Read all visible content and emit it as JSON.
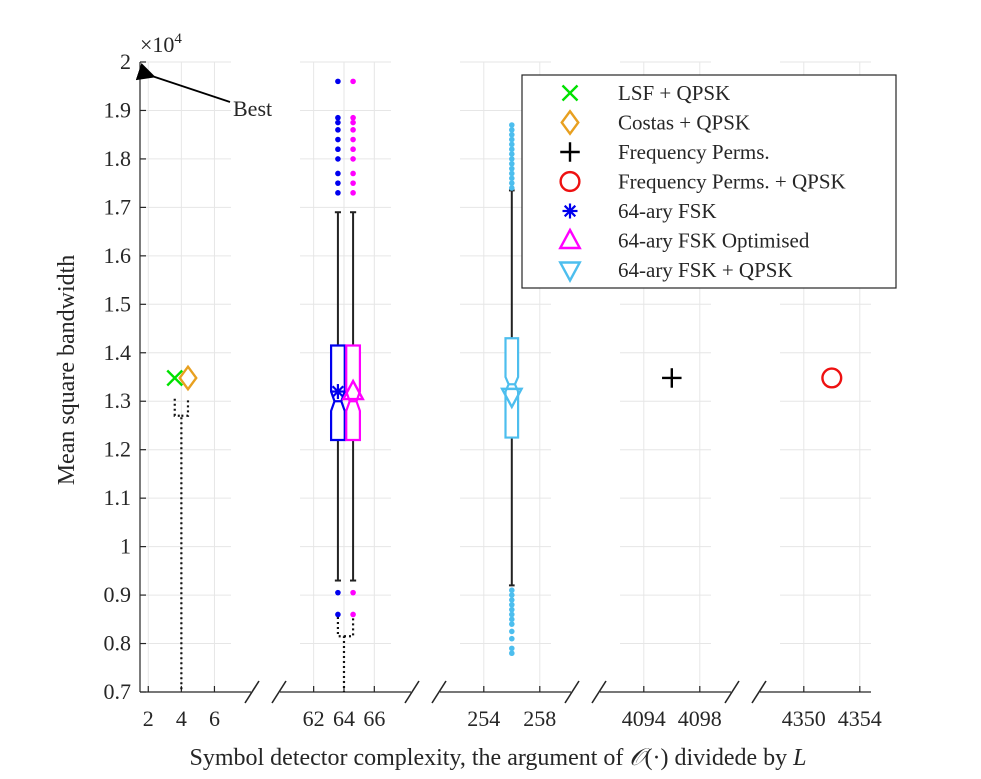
{
  "chart_data": {
    "type": "box",
    "ylabel": "Mean square bandwidth",
    "xlabel_prefix": "Symbol detector complexity, the argument of ",
    "xlabel_math": "𝒪",
    "xlabel_mid": "(·) dividede by ",
    "xlabel_var": "L",
    "y_multiplier_base": "×10",
    "y_multiplier_exp": "4",
    "y_scale": 10000,
    "ylim": [
      7000,
      20000
    ],
    "yticks": [
      7000,
      8000,
      9000,
      10000,
      11000,
      12000,
      13000,
      14000,
      15000,
      16000,
      17000,
      18000,
      19000,
      20000
    ],
    "ytick_labels": [
      "0.7",
      "0.8",
      "0.9",
      "1",
      "1.1",
      "1.2",
      "1.3",
      "1.4",
      "1.5",
      "1.6",
      "1.7",
      "1.8",
      "1.9",
      "2"
    ],
    "panels": [
      {
        "xlim": [
          1.5,
          7
        ],
        "ticks": [
          2,
          4,
          6
        ],
        "tick_labels": [
          "2",
          "4",
          "6"
        ]
      },
      {
        "xlim": [
          61.1,
          67.1
        ],
        "ticks": [
          62,
          64,
          66
        ],
        "tick_labels": [
          "62",
          "64",
          "66"
        ]
      },
      {
        "xlim": [
          252.3,
          258.8
        ],
        "ticks": [
          254,
          258
        ],
        "tick_labels": [
          "254",
          "258"
        ]
      },
      {
        "xlim": [
          4092.3,
          4098.8
        ],
        "ticks": [
          4094,
          4098
        ],
        "tick_labels": [
          "4094",
          "4098"
        ]
      },
      {
        "xlim": [
          4348.3,
          4354.8
        ],
        "ticks": [
          4350,
          4354
        ],
        "tick_labels": [
          "4350",
          "4354"
        ]
      }
    ],
    "series": [
      {
        "name": "LSF + QPSK",
        "marker": "x",
        "color": "#00e100",
        "points": [
          [
            3.6,
            13480
          ]
        ]
      },
      {
        "name": "Costas + QPSK",
        "marker": "diamond",
        "color": "#e8a020",
        "points": [
          [
            4.4,
            13480
          ]
        ]
      },
      {
        "name": "Frequency Perms.",
        "marker": "plus",
        "color": "#000000",
        "points": [
          [
            4096,
            13480
          ]
        ]
      },
      {
        "name": "Frequency Perms. + QPSK",
        "marker": "circle",
        "color": "#ee1111",
        "points": [
          [
            4352,
            13480
          ]
        ]
      },
      {
        "name": "64-ary FSK",
        "marker": "asterisk",
        "color": "#0000ee",
        "points": [
          [
            63.6,
            13200
          ]
        ]
      },
      {
        "name": "64-ary FSK Optimised",
        "marker": "triangle-up",
        "color": "#ff00ff",
        "points": [
          [
            64.6,
            13200
          ]
        ]
      },
      {
        "name": "64-ary FSK + QPSK",
        "marker": "triangle-down",
        "color": "#4dbeee",
        "points": [
          [
            256,
            13100
          ]
        ]
      }
    ],
    "boxes": [
      {
        "name": "64-ary FSK",
        "x": 63.6,
        "halfwidth": 0.45,
        "q1": 12200,
        "median": 13000,
        "q3": 14150,
        "notch_low": 12800,
        "notch_high": 13200,
        "whisker_low": 9300,
        "whisker_high": 16900,
        "color": "#0000ee",
        "outliers": [
          9050,
          8600,
          17300,
          17500,
          17700,
          18000,
          18200,
          18400,
          18600,
          18750,
          18850,
          19600
        ]
      },
      {
        "name": "64-ary FSK Optimised",
        "x": 64.6,
        "halfwidth": 0.45,
        "q1": 12200,
        "median": 13000,
        "q3": 14150,
        "notch_low": 12800,
        "notch_high": 13200,
        "whisker_low": 9300,
        "whisker_high": 16900,
        "color": "#ff00ff",
        "outliers": [
          9050,
          8600,
          17300,
          17500,
          17700,
          18000,
          18200,
          18400,
          18600,
          18750,
          18850,
          19600
        ]
      },
      {
        "name": "64-ary FSK + QPSK",
        "x": 256,
        "halfwidth": 0.45,
        "q1": 12250,
        "median": 13350,
        "q3": 14300,
        "notch_low": 13200,
        "notch_high": 13500,
        "whisker_low": 9200,
        "whisker_high": 17350,
        "color": "#4dbeee",
        "outliers": [
          7800,
          7900,
          8100,
          8250,
          8400,
          8500,
          8600,
          8700,
          8800,
          8900,
          9000,
          9100,
          17400,
          17500,
          17600,
          17700,
          17800,
          17900,
          18000,
          18100,
          18200,
          18300,
          18400,
          18500,
          18600,
          18700
        ]
      }
    ],
    "dotted_connectors": [
      {
        "from_panel": 0,
        "x_left": 3.6,
        "x_right": 4.4,
        "y_top": 13050,
        "y_bottom": 12700,
        "stem_x": 4
      },
      {
        "from_panel": 1,
        "x_left": 63.6,
        "x_right": 64.6,
        "y_top": 8650,
        "y_bottom": 8150,
        "stem_x": 64
      }
    ],
    "annotation": {
      "text": "Best",
      "x": 2,
      "y": 19750
    },
    "legend_position": "top-right"
  }
}
